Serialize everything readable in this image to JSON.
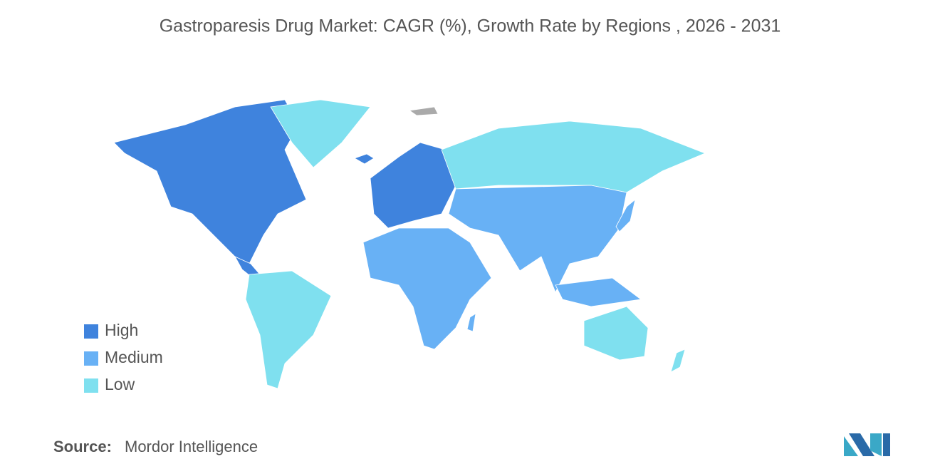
{
  "title": "Gastroparesis Drug Market: CAGR (%), Growth Rate by Regions  , 2026 - 2031",
  "legend": [
    {
      "label": "High",
      "color": "#3f83dd"
    },
    {
      "label": "Medium",
      "color": "#68b1f5"
    },
    {
      "label": "Low",
      "color": "#7fe0ef"
    }
  ],
  "source": {
    "label": "Source:",
    "text": "Mordor Intelligence"
  }
}
